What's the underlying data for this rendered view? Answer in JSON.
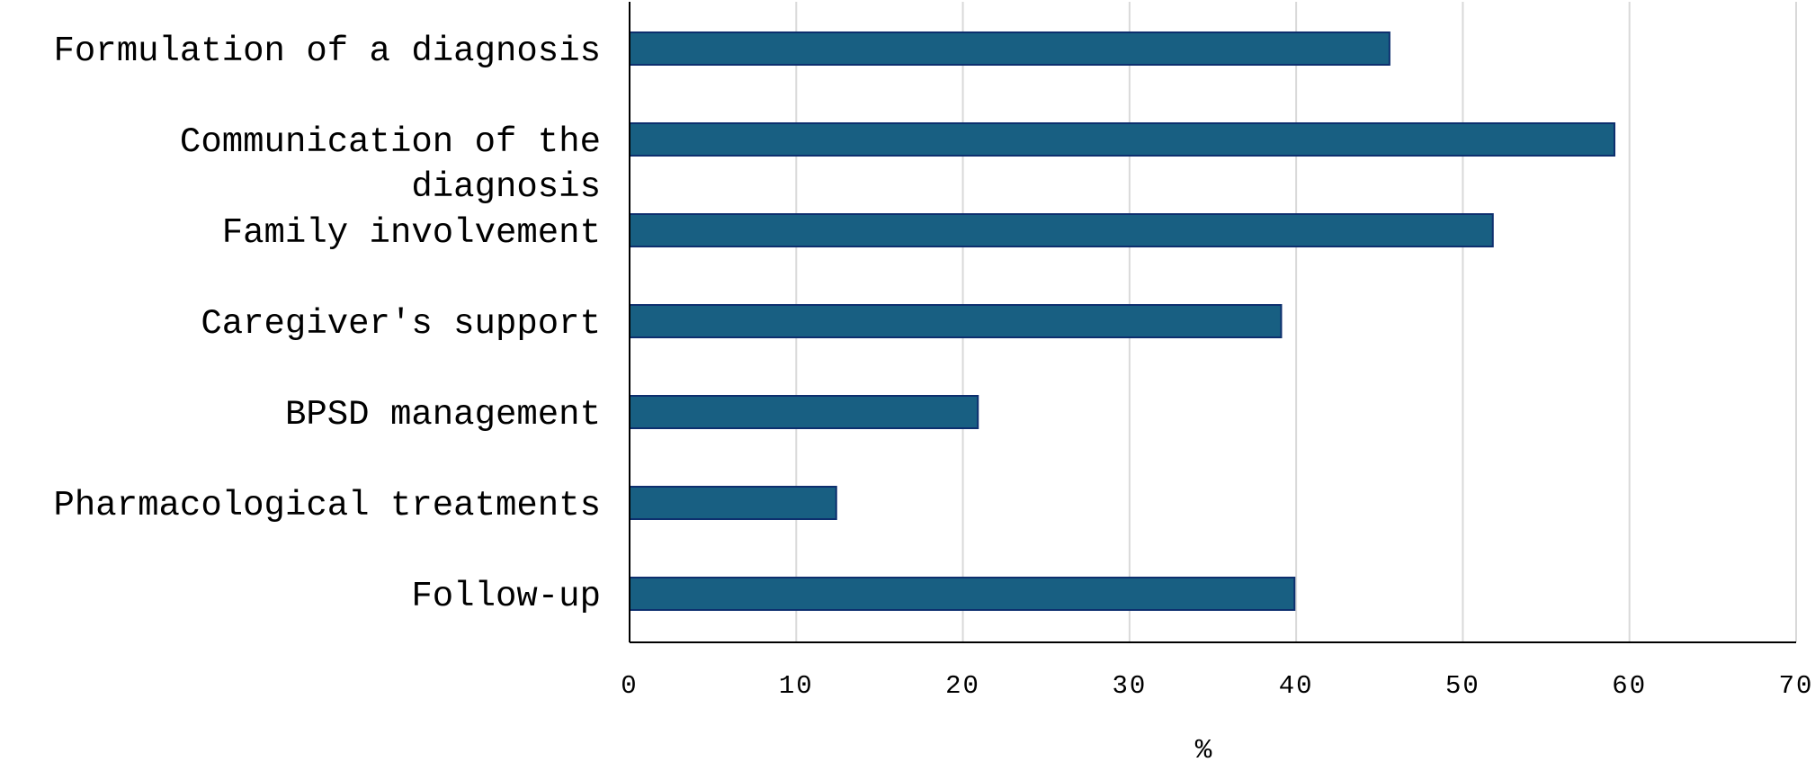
{
  "chart_data": {
    "type": "bar",
    "orientation": "horizontal",
    "categories": [
      [
        "Formulation of a diagnosis"
      ],
      [
        "Communication of the",
        "diagnosis"
      ],
      [
        "Family involvement"
      ],
      [
        "Caregiver's support"
      ],
      [
        "BPSD management"
      ],
      [
        "Pharmacological treatments"
      ],
      [
        "Follow-up"
      ]
    ],
    "values": [
      45.6,
      59.1,
      51.8,
      39.1,
      20.9,
      12.4,
      39.9
    ],
    "xlim": [
      0,
      70
    ],
    "xticks": [
      0,
      10,
      20,
      30,
      40,
      50,
      60,
      70
    ],
    "xlabel": "%",
    "ylabel": "",
    "title": "",
    "grid": "vertical",
    "legend": "none",
    "bar_fill": "#185f82",
    "bar_stroke": "#0d2f6e"
  }
}
